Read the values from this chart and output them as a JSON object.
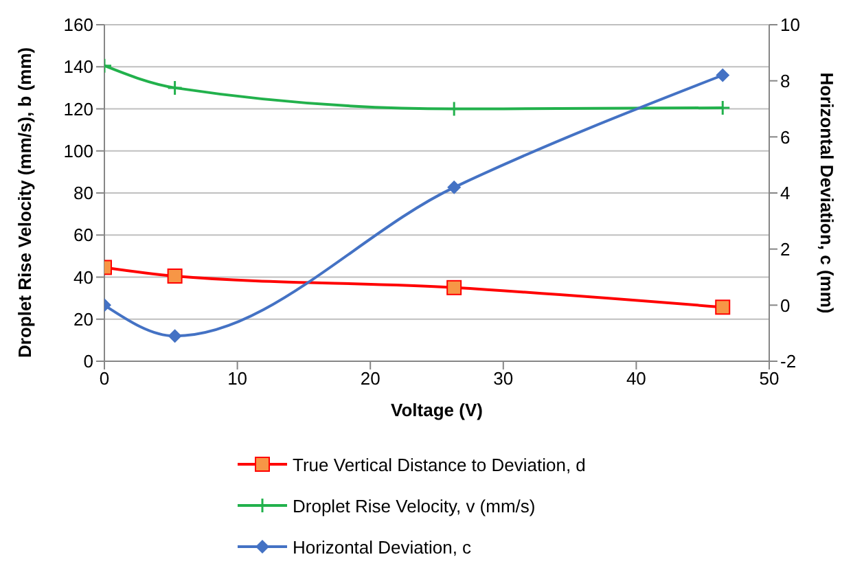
{
  "chart_data": {
    "type": "line",
    "xlabel": "Voltage (V)",
    "ylabel": "Droplet Rise Velocity (mm/s),  b (mm)",
    "y2label": "Horizontal Deviation, c (mm)",
    "x": [
      0,
      5.3,
      26.3,
      46.5
    ],
    "series": [
      {
        "name": "True Vertical Distance to Deviation, d",
        "color": "#ff0000",
        "values": [
          44.6,
          40.5,
          35,
          25.7
        ],
        "marker": "square"
      },
      {
        "name": "Droplet Rise Velocity, v (mm/s)",
        "color": "#22b14c",
        "values": [
          140.5,
          130,
          120,
          120.5
        ],
        "marker": "cross"
      },
      {
        "name": "Horizontal Deviation, c",
        "color": "#4472c4",
        "values": [
          0,
          -1.1,
          4.2,
          8.2
        ],
        "marker": "diamond",
        "axis": "y2"
      }
    ],
    "xlim": [
      0,
      50
    ],
    "xticks": [
      0,
      10,
      20,
      30,
      40,
      50
    ],
    "ylim": [
      0,
      160
    ],
    "yticks": [
      0,
      20,
      40,
      60,
      80,
      100,
      120,
      140,
      160
    ],
    "y2lim": [
      -2,
      10
    ],
    "y2ticks": [
      -2,
      0,
      2,
      4,
      6,
      8,
      10
    ],
    "grid": "y",
    "legend": "bottom",
    "line_style": "solid"
  }
}
